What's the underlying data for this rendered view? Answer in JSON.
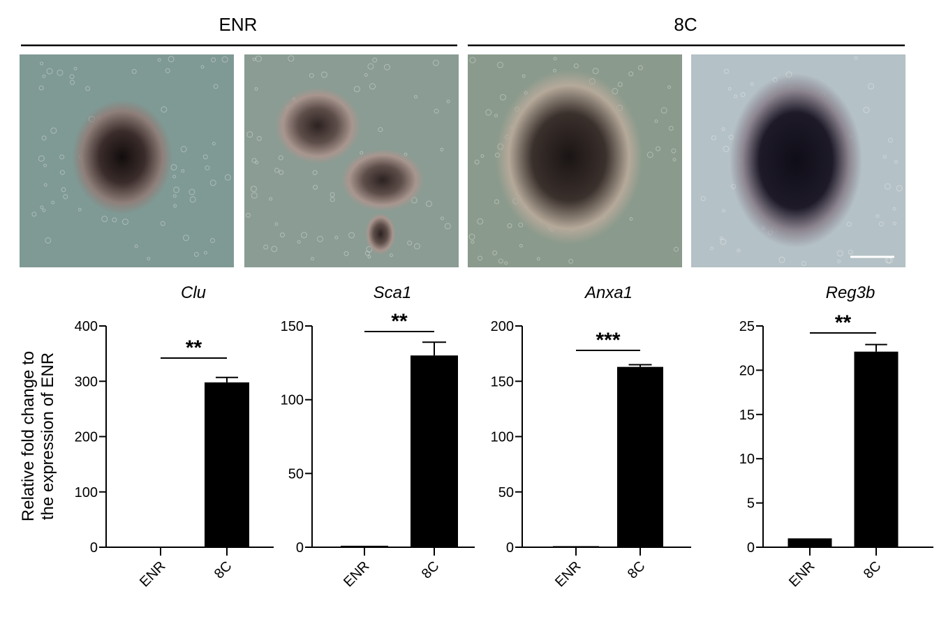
{
  "header": {
    "groups": [
      {
        "label": "ENR"
      },
      {
        "label": "8C"
      }
    ]
  },
  "images": [
    {
      "group": "ENR",
      "background": "#7f9994",
      "organoid": "#2a2020"
    },
    {
      "group": "ENR",
      "background": "#8a9c93",
      "organoid": "#3a2b28"
    },
    {
      "group": "8C",
      "background": "#8a9a8c",
      "organoid": "#231c1c"
    },
    {
      "group": "8C",
      "background": "#b4c1c6",
      "organoid": "#15131f",
      "scale_bar": true
    }
  ],
  "chart_data": [
    {
      "type": "bar",
      "title": "Clu",
      "ylabel": "Relative fold change to the expression of ENR",
      "categories": [
        "ENR",
        "8C"
      ],
      "values": [
        1,
        298
      ],
      "error": [
        0.2,
        9
      ],
      "ylim": [
        0,
        400
      ],
      "yticks": [
        "0",
        "100",
        "200",
        "300",
        "400"
      ],
      "significance": "**",
      "color": "#000000",
      "grid": false
    },
    {
      "type": "bar",
      "title": "Sca1",
      "categories": [
        "ENR",
        "8C"
      ],
      "values": [
        1,
        130
      ],
      "error": [
        0.2,
        9
      ],
      "ylim": [
        0,
        150
      ],
      "yticks": [
        "0",
        "50",
        "100",
        "150"
      ],
      "significance": "**",
      "color": "#000000",
      "grid": false
    },
    {
      "type": "bar",
      "title": "Anxa1",
      "categories": [
        "ENR",
        "8C"
      ],
      "values": [
        1,
        163
      ],
      "error": [
        0.2,
        2
      ],
      "ylim": [
        0,
        200
      ],
      "yticks": [
        "0",
        "50",
        "100",
        "150",
        "200"
      ],
      "significance": "***",
      "color": "#000000",
      "grid": false
    },
    {
      "type": "bar",
      "title": "Reg3b",
      "categories": [
        "ENR",
        "8C"
      ],
      "values": [
        1,
        22.1
      ],
      "error": [
        0.05,
        0.8
      ],
      "ylim": [
        0,
        25
      ],
      "yticks": [
        "0",
        "5",
        "10",
        "15",
        "20",
        "25"
      ],
      "significance": "**",
      "color": "#000000",
      "grid": false
    }
  ]
}
